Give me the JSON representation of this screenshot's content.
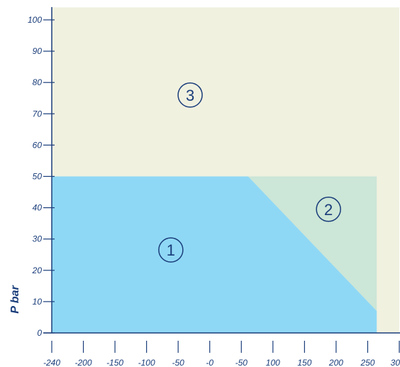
{
  "chart_data": {
    "type": "area",
    "ylabel": "P bar",
    "xlabel": "",
    "xlim": [
      -240,
      300
    ],
    "ylim": [
      0,
      100
    ],
    "x_tick_labels": [
      "-240",
      "-200",
      "-150",
      "-100",
      "-50",
      "-0",
      "-50",
      "100",
      "150",
      "200",
      "250",
      "30"
    ],
    "y_tick_values": [
      0,
      10,
      20,
      30,
      40,
      50,
      60,
      70,
      80,
      90,
      100
    ],
    "regions": [
      {
        "label": "③",
        "color": "#f1f1e0",
        "label_pos": [
          -25,
          76
        ],
        "polygon": [
          [
            -240,
            0
          ],
          [
            -240,
            104
          ],
          [
            300,
            104
          ],
          [
            300,
            0
          ]
        ]
      },
      {
        "label": "②",
        "color": "#cce6d7",
        "label_pos": [
          190,
          39.5
        ],
        "polygon": [
          [
            65,
            50
          ],
          [
            265,
            50
          ],
          [
            265,
            7
          ]
        ]
      },
      {
        "label": "①",
        "color": "#8fd8f5",
        "label_pos": [
          -55,
          26.5
        ],
        "polygon": [
          [
            -240,
            0
          ],
          [
            -240,
            50
          ],
          [
            65,
            50
          ],
          [
            265,
            7
          ],
          [
            265,
            0
          ]
        ]
      }
    ],
    "colors": {
      "axis": "#1a3d7a",
      "text": "#1a3d7a"
    }
  }
}
